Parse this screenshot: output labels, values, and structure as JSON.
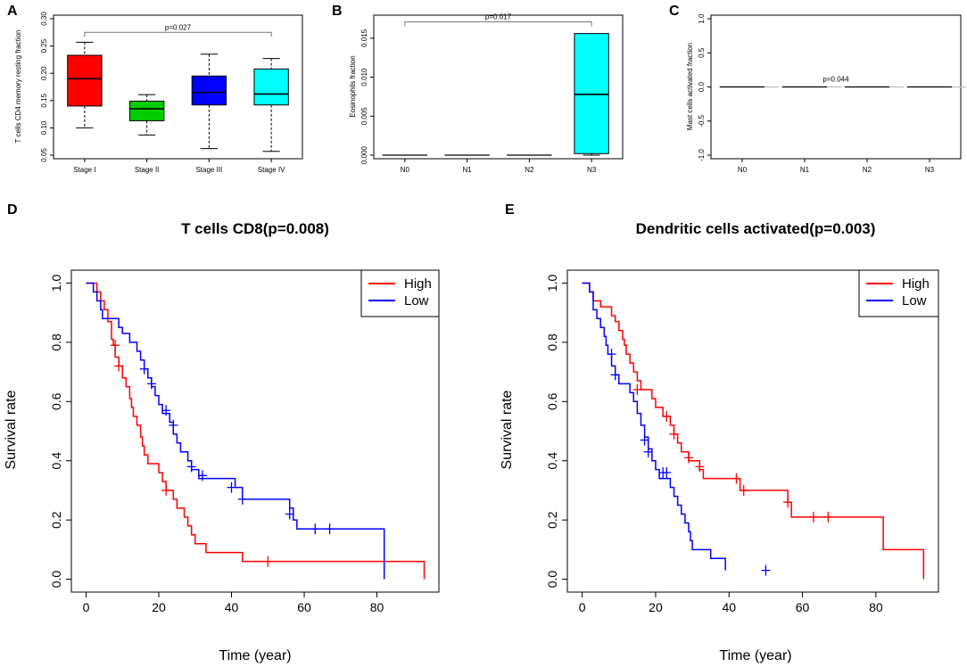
{
  "colors": {
    "red": "#ff0000",
    "blue": "#0000ff",
    "green": "#00cd00",
    "cyan": "#00ffff",
    "gray": "#bebebe",
    "black": "#000000"
  },
  "chart_data": [
    {
      "id": "A",
      "panel_label": "A",
      "type": "box",
      "ylabel": "T cells CD4 memory resting fraction",
      "ylim": [
        0.05,
        0.3
      ],
      "yticks": [
        "0.05",
        "0.10",
        "0.15",
        "0.20",
        "0.25",
        "0.30"
      ],
      "categories": [
        "Stage I",
        "Stage II",
        "Stage III",
        "Stage IV"
      ],
      "boxes": [
        {
          "name": "Stage I",
          "min": 0.1,
          "q1": 0.14,
          "median": 0.19,
          "q3": 0.233,
          "max": 0.257,
          "color": "#ff0000"
        },
        {
          "name": "Stage II",
          "min": 0.087,
          "q1": 0.113,
          "median": 0.135,
          "q3": 0.149,
          "max": 0.161,
          "color": "#00cd00"
        },
        {
          "name": "Stage III",
          "min": 0.062,
          "q1": 0.142,
          "median": 0.165,
          "q3": 0.195,
          "max": 0.235,
          "color": "#0000ff"
        },
        {
          "name": "Stage IV",
          "min": 0.057,
          "q1": 0.142,
          "median": 0.162,
          "q3": 0.208,
          "max": 0.227,
          "color": "#00ffff"
        }
      ],
      "annotation": {
        "text": "p=0.027",
        "from": 0,
        "to": 3,
        "y": 0.275
      }
    },
    {
      "id": "B",
      "panel_label": "B",
      "type": "box",
      "ylabel": "Eosinophils fraction",
      "ylim": [
        0,
        0.0175
      ],
      "yticks": [
        "0.000",
        "0.005",
        "0.010",
        "0.015"
      ],
      "categories": [
        "N0",
        "N1",
        "N2",
        "N3"
      ],
      "boxes": [
        {
          "name": "N0",
          "min": 0,
          "q1": 0,
          "median": 0,
          "q3": 0,
          "max": 0,
          "color": "#bebebe"
        },
        {
          "name": "N1",
          "min": 0,
          "q1": 0,
          "median": 0,
          "q3": 0,
          "max": 0,
          "color": "#bebebe"
        },
        {
          "name": "N2",
          "min": 0,
          "q1": 0,
          "median": 0,
          "q3": 0,
          "max": 0,
          "color": "#bebebe"
        },
        {
          "name": "N3",
          "min": 0,
          "q1": 0.0002,
          "median": 0.0078,
          "q3": 0.0156,
          "max": 0.0156,
          "color": "#00ffff"
        }
      ],
      "annotation": {
        "text": "p=0.017",
        "from": 0,
        "to": 3,
        "y": 0.0171
      }
    },
    {
      "id": "C",
      "panel_label": "C",
      "type": "box",
      "ylabel": "Mast cells activated fraction",
      "ylim": [
        -1.0,
        1.0
      ],
      "yticks": [
        "-1.0",
        "-0.5",
        "0.0",
        "0.5",
        "1.0"
      ],
      "categories": [
        "N0",
        "N1",
        "N2",
        "N3"
      ],
      "boxes": [
        {
          "name": "N0",
          "min": 0,
          "q1": 0,
          "median": 0,
          "q3": 0,
          "max": 0,
          "color": "#bebebe"
        },
        {
          "name": "N1",
          "min": 0,
          "q1": 0,
          "median": 0,
          "q3": 0,
          "max": 0,
          "color": "#bebebe"
        },
        {
          "name": "N2",
          "min": 0,
          "q1": 0,
          "median": 0,
          "q3": 0,
          "max": 0,
          "color": "#bebebe"
        },
        {
          "name": "N3",
          "min": 0,
          "q1": 0,
          "median": 0,
          "q3": 0,
          "max": 0,
          "color": "#bebebe"
        }
      ],
      "annotation": {
        "text": "p=0.044",
        "from": 1,
        "to": 2,
        "y": 0.04
      }
    },
    {
      "id": "D",
      "panel_label": "D",
      "type": "line",
      "title": "T cells CD8(p=0.008)",
      "xlabel": "Time (year)",
      "ylabel": "Survival rate",
      "xlim": [
        0,
        93
      ],
      "ylim": [
        0,
        1
      ],
      "xticks": [
        "0",
        "20",
        "40",
        "60",
        "80"
      ],
      "yticks": [
        "0.0",
        "0.2",
        "0.4",
        "0.6",
        "0.8",
        "1.0"
      ],
      "legend": [
        "High",
        "Low"
      ],
      "series": [
        {
          "name": "High",
          "color": "#ff0000",
          "steps": [
            [
              0,
              1
            ],
            [
              3,
              0.97
            ],
            [
              4,
              0.94
            ],
            [
              5,
              0.91
            ],
            [
              6,
              0.87
            ],
            [
              7,
              0.81
            ],
            [
              7.5,
              0.79
            ],
            [
              8,
              0.75
            ],
            [
              9,
              0.72
            ],
            [
              10,
              0.68
            ],
            [
              11,
              0.65
            ],
            [
              12,
              0.61
            ],
            [
              12.5,
              0.58
            ],
            [
              13,
              0.55
            ],
            [
              14,
              0.52
            ],
            [
              15,
              0.48
            ],
            [
              15.5,
              0.45
            ],
            [
              16,
              0.42
            ],
            [
              17,
              0.39
            ],
            [
              20,
              0.36
            ],
            [
              21,
              0.33
            ],
            [
              22,
              0.3
            ],
            [
              24,
              0.27
            ],
            [
              25,
              0.24
            ],
            [
              27,
              0.21
            ],
            [
              28,
              0.18
            ],
            [
              29,
              0.15
            ],
            [
              30,
              0.12
            ],
            [
              33,
              0.09
            ],
            [
              43,
              0.06
            ],
            [
              93,
              0
            ]
          ],
          "censored": [
            [
              8,
              0.79
            ],
            [
              9,
              0.72
            ],
            [
              22,
              0.3
            ],
            [
              50,
              0.06
            ]
          ]
        },
        {
          "name": "Low",
          "color": "#0000ff",
          "steps": [
            [
              0,
              1
            ],
            [
              2,
              0.97
            ],
            [
              3,
              0.94
            ],
            [
              4,
              0.91
            ],
            [
              4.5,
              0.88
            ],
            [
              9,
              0.85
            ],
            [
              10,
              0.83
            ],
            [
              12,
              0.8
            ],
            [
              14,
              0.77
            ],
            [
              15,
              0.74
            ],
            [
              16,
              0.71
            ],
            [
              17,
              0.68
            ],
            [
              18,
              0.65
            ],
            [
              19,
              0.62
            ],
            [
              20,
              0.59
            ],
            [
              21,
              0.56
            ],
            [
              23,
              0.53
            ],
            [
              24,
              0.49
            ],
            [
              25,
              0.46
            ],
            [
              26,
              0.43
            ],
            [
              28,
              0.4
            ],
            [
              29,
              0.37
            ],
            [
              31,
              0.34
            ],
            [
              41,
              0.31
            ],
            [
              43,
              0.27
            ],
            [
              56,
              0.24
            ],
            [
              57,
              0.2
            ],
            [
              58,
              0.17
            ],
            [
              82,
              0
            ]
          ],
          "censored": [
            [
              16,
              0.71
            ],
            [
              18,
              0.66
            ],
            [
              22,
              0.57
            ],
            [
              24,
              0.52
            ],
            [
              29,
              0.38
            ],
            [
              32,
              0.35
            ],
            [
              40,
              0.31
            ],
            [
              43,
              0.27
            ],
            [
              56,
              0.22
            ],
            [
              63,
              0.17
            ],
            [
              67,
              0.17
            ]
          ]
        }
      ]
    },
    {
      "id": "E",
      "panel_label": "E",
      "type": "line",
      "title": "Dendritic cells activated(p=0.003)",
      "xlabel": "Time (year)",
      "ylabel": "Survival rate",
      "xlim": [
        0,
        93
      ],
      "ylim": [
        0,
        1
      ],
      "xticks": [
        "0",
        "20",
        "40",
        "60",
        "80"
      ],
      "yticks": [
        "0.0",
        "0.2",
        "0.4",
        "0.6",
        "0.8",
        "1.0"
      ],
      "legend": [
        "High",
        "Low"
      ],
      "series": [
        {
          "name": "High",
          "color": "#ff0000",
          "steps": [
            [
              0,
              1
            ],
            [
              2,
              0.97
            ],
            [
              3,
              0.94
            ],
            [
              5,
              0.92
            ],
            [
              8,
              0.89
            ],
            [
              9,
              0.87
            ],
            [
              10,
              0.84
            ],
            [
              11,
              0.81
            ],
            [
              11.5,
              0.79
            ],
            [
              12,
              0.76
            ],
            [
              13,
              0.73
            ],
            [
              14,
              0.7
            ],
            [
              15,
              0.67
            ],
            [
              16,
              0.64
            ],
            [
              19,
              0.61
            ],
            [
              20,
              0.58
            ],
            [
              22,
              0.55
            ],
            [
              24,
              0.52
            ],
            [
              25,
              0.49
            ],
            [
              26,
              0.46
            ],
            [
              27,
              0.43
            ],
            [
              29,
              0.4
            ],
            [
              32,
              0.37
            ],
            [
              33,
              0.34
            ],
            [
              43,
              0.3
            ],
            [
              56,
              0.26
            ],
            [
              57,
              0.21
            ],
            [
              82,
              0.1
            ],
            [
              93,
              0
            ]
          ],
          "censored": [
            [
              15,
              0.64
            ],
            [
              23,
              0.55
            ],
            [
              25,
              0.49
            ],
            [
              29,
              0.41
            ],
            [
              32,
              0.38
            ],
            [
              42,
              0.34
            ],
            [
              44,
              0.3
            ],
            [
              56,
              0.26
            ],
            [
              63,
              0.21
            ],
            [
              67,
              0.21
            ]
          ]
        },
        {
          "name": "Low",
          "color": "#0000ff",
          "steps": [
            [
              0,
              1
            ],
            [
              2,
              0.97
            ],
            [
              3,
              0.91
            ],
            [
              4,
              0.88
            ],
            [
              5,
              0.85
            ],
            [
              6,
              0.82
            ],
            [
              6.5,
              0.79
            ],
            [
              7,
              0.76
            ],
            [
              8,
              0.72
            ],
            [
              9,
              0.69
            ],
            [
              10,
              0.66
            ],
            [
              13,
              0.63
            ],
            [
              14,
              0.6
            ],
            [
              15,
              0.56
            ],
            [
              16,
              0.52
            ],
            [
              17,
              0.48
            ],
            [
              18,
              0.44
            ],
            [
              19,
              0.4
            ],
            [
              20,
              0.37
            ],
            [
              21,
              0.34
            ],
            [
              24,
              0.31
            ],
            [
              25,
              0.28
            ],
            [
              26,
              0.25
            ],
            [
              27,
              0.22
            ],
            [
              28,
              0.19
            ],
            [
              29,
              0.16
            ],
            [
              29.5,
              0.13
            ],
            [
              30,
              0.1
            ],
            [
              35,
              0.07
            ],
            [
              39,
              0.03
            ]
          ],
          "censored": [
            [
              8,
              0.76
            ],
            [
              9,
              0.69
            ],
            [
              17,
              0.47
            ],
            [
              18,
              0.43
            ],
            [
              22,
              0.36
            ],
            [
              23,
              0.36
            ],
            [
              50,
              0.03
            ]
          ]
        }
      ]
    }
  ]
}
